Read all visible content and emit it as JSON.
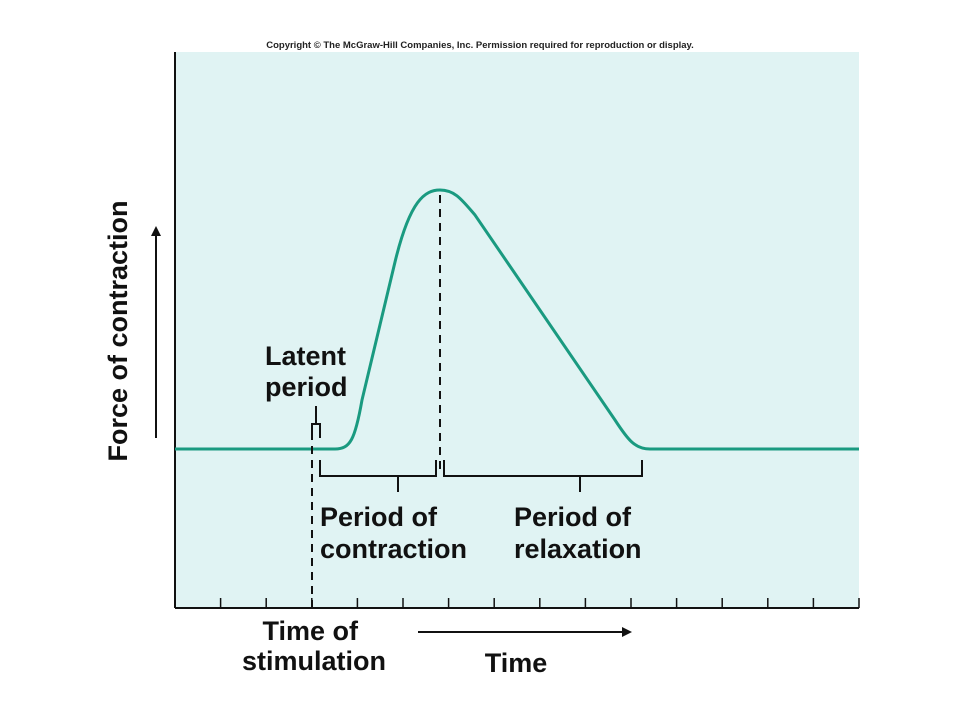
{
  "copyright": "Copyright © The McGraw-Hill Companies, Inc. Permission required for reproduction or display.",
  "y_axis_label": "Force of contraction",
  "x_axis_label": "Time",
  "stimulation_label": [
    "Time of",
    "stimulation"
  ],
  "latent_label": [
    "Latent",
    "period"
  ],
  "contraction_label": [
    "Period of",
    "contraction"
  ],
  "relaxation_label": [
    "Period of",
    "relaxation"
  ],
  "colors": {
    "plot_background": "#e0f3f3",
    "curve": "#1a9a80",
    "axis": "#111111"
  }
}
